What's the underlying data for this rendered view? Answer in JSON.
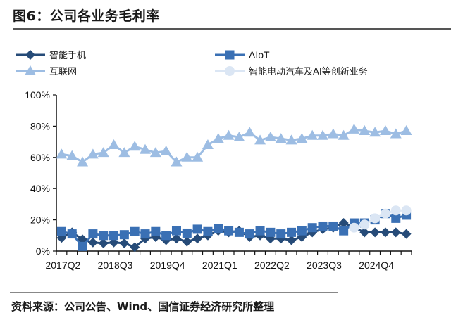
{
  "figure": {
    "title": "图6：公司各业务毛利率",
    "source": "资料来源：公司公告、Wind、国信证券经济研究所整理"
  },
  "chart_data": {
    "type": "line",
    "title": "图6：公司各业务毛利率",
    "xlabel": "",
    "ylabel": "",
    "ylim": [
      0,
      100
    ],
    "y_ticks": [
      "0%",
      "20%",
      "40%",
      "60%",
      "80%",
      "100%"
    ],
    "y_tick_values": [
      0,
      20,
      40,
      60,
      80,
      100
    ],
    "x_tick_labels": [
      "2017Q2",
      "2018Q3",
      "2019Q4",
      "2021Q1",
      "2022Q2",
      "2023Q3",
      "2024Q4"
    ],
    "grid": false,
    "legend_position": "top",
    "categories": [
      "2017Q2",
      "2017Q3",
      "2017Q4",
      "2018Q1",
      "2018Q2",
      "2018Q3",
      "2018Q4",
      "2019Q1",
      "2019Q2",
      "2019Q3",
      "2019Q4",
      "2020Q1",
      "2020Q2",
      "2020Q3",
      "2020Q4",
      "2021Q1",
      "2021Q2",
      "2021Q3",
      "2021Q4",
      "2022Q1",
      "2022Q2",
      "2022Q3",
      "2022Q4",
      "2023Q1",
      "2023Q2",
      "2023Q3",
      "2023Q4",
      "2024Q1",
      "2024Q2",
      "2024Q3",
      "2024Q4",
      "2025Q1",
      "2025Q2",
      "2025Q3"
    ],
    "series": [
      {
        "name": "智能手机",
        "marker": "diamond",
        "color": "#264b78",
        "values": [
          8.5,
          12,
          7.5,
          5.5,
          5,
          5.5,
          5,
          2.5,
          8,
          9,
          7,
          8,
          6,
          8,
          10,
          13,
          12,
          13,
          9,
          10,
          8,
          8,
          7,
          9,
          12,
          14,
          15,
          18,
          15,
          12,
          12,
          12,
          12,
          11
        ]
      },
      {
        "name": "AIoT",
        "marker": "square",
        "color": "#3a70b4",
        "values": [
          12.5,
          11,
          3,
          11,
          10,
          10,
          10.5,
          12.5,
          11,
          12.5,
          10,
          13,
          11.5,
          14,
          12.5,
          14.5,
          13,
          12,
          11,
          13,
          12,
          11,
          12,
          13,
          15,
          16,
          16,
          13,
          18,
          18,
          20,
          24,
          21,
          23
        ]
      },
      {
        "name": "互联网",
        "marker": "triangle",
        "color": "#9dbde3",
        "values": [
          62,
          61,
          57,
          62,
          63,
          68,
          63,
          67,
          65,
          63,
          64,
          57,
          60,
          60,
          68,
          72,
          74,
          73,
          76,
          71,
          73,
          72,
          71,
          72,
          74,
          74,
          75,
          74,
          78,
          77,
          76,
          77,
          75,
          77
        ]
      },
      {
        "name": "智能电动汽车及AI等创新业务",
        "marker": "circle",
        "color": "#dbe6f4",
        "values": [
          null,
          null,
          null,
          null,
          null,
          null,
          null,
          null,
          null,
          null,
          null,
          null,
          null,
          null,
          null,
          null,
          null,
          null,
          null,
          null,
          null,
          null,
          null,
          null,
          null,
          null,
          null,
          null,
          15,
          17,
          21,
          24,
          26,
          26
        ]
      }
    ]
  },
  "legend": {
    "items": [
      {
        "label": "智能手机"
      },
      {
        "label": "AIoT"
      },
      {
        "label": "互联网"
      },
      {
        "label": "智能电动汽车及AI等创新业务"
      }
    ]
  }
}
